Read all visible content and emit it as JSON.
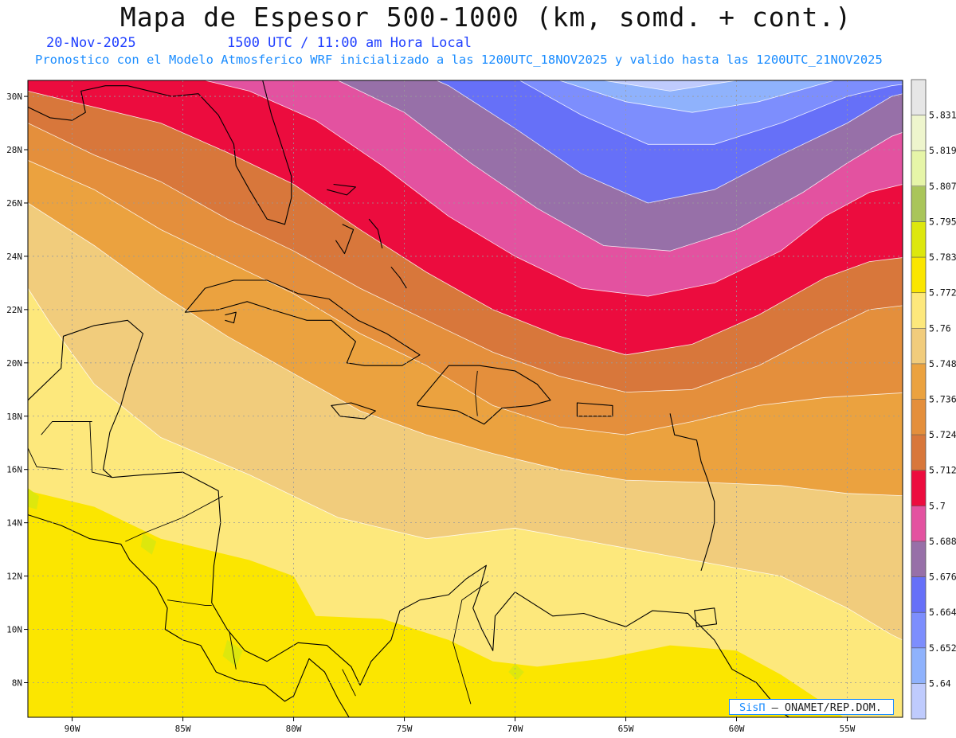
{
  "header": {
    "title": "Mapa de Espesor 500-1000 (km, somd. + cont.)",
    "date": "20-Nov-2025",
    "time": "1500 UTC / 11:00 am Hora Local",
    "run_info": "Pronostico con el Modelo Atmosferico WRF inicializado a las 1200UTC_18NOV2025 y valido hasta las  1200UTC_21NOV2025"
  },
  "map": {
    "lon_range": [
      -92,
      -52.5
    ],
    "lat_range": [
      6.7,
      30.6
    ],
    "lon_ticks": [
      {
        "value": -90,
        "label": "90W"
      },
      {
        "value": -85,
        "label": "85W"
      },
      {
        "value": -80,
        "label": "80W"
      },
      {
        "value": -75,
        "label": "75W"
      },
      {
        "value": -70,
        "label": "70W"
      },
      {
        "value": -65,
        "label": "65W"
      },
      {
        "value": -60,
        "label": "60W"
      },
      {
        "value": -55,
        "label": "55W"
      }
    ],
    "lat_ticks": [
      {
        "value": 8,
        "label": "8N"
      },
      {
        "value": 10,
        "label": "10N"
      },
      {
        "value": 12,
        "label": "12N"
      },
      {
        "value": 14,
        "label": "14N"
      },
      {
        "value": 16,
        "label": "16N"
      },
      {
        "value": 18,
        "label": "18N"
      },
      {
        "value": 20,
        "label": "20N"
      },
      {
        "value": 22,
        "label": "22N"
      },
      {
        "value": 24,
        "label": "24N"
      },
      {
        "value": 26,
        "label": "26N"
      },
      {
        "value": 28,
        "label": "28N"
      },
      {
        "value": 30,
        "label": "30N"
      }
    ],
    "colors": {
      "c5640": "#bfcbfd",
      "c5652": "#8fb2fc",
      "c5664": "#7d8efd",
      "c5676": "#6670f8",
      "c5688": "#9770a8",
      "c5700": "#e352a0",
      "c5712": "#ec0c3e",
      "c5724": "#d8773b",
      "c5736": "#e48f3c",
      "c5748": "#eba23f",
      "c5760": "#f1cc7c",
      "c5772": "#fde87c",
      "c5783": "#fbe600",
      "c5795": "#dde70d",
      "c5807": "#a9c55a",
      "c5819": "#e6f5a8",
      "c5831": "#eef5cd",
      "top": "#e6e6e6"
    }
  },
  "colorbar": {
    "labels": [
      "5.64",
      "5.652",
      "5.664",
      "5.676",
      "5.688",
      "5.7",
      "5.712",
      "5.724",
      "5.736",
      "5.748",
      "5.76",
      "5.772",
      "5.783",
      "5.795",
      "5.807",
      "5.819",
      "5.831"
    ],
    "colors": [
      "#bfcbfd",
      "#8fb2fc",
      "#7d8efd",
      "#6670f8",
      "#9770a8",
      "#e352a0",
      "#ec0c3e",
      "#d8773b",
      "#e48f3c",
      "#eba23f",
      "#f1cc7c",
      "#fde87c",
      "#fbe600",
      "#dde70d",
      "#a9c55a",
      "#e6f5a8",
      "#eef5cd",
      "#e6e6e6"
    ]
  },
  "credit": {
    "sis": "SisΠ",
    "org": "– ONAMET/REP.DOM."
  }
}
